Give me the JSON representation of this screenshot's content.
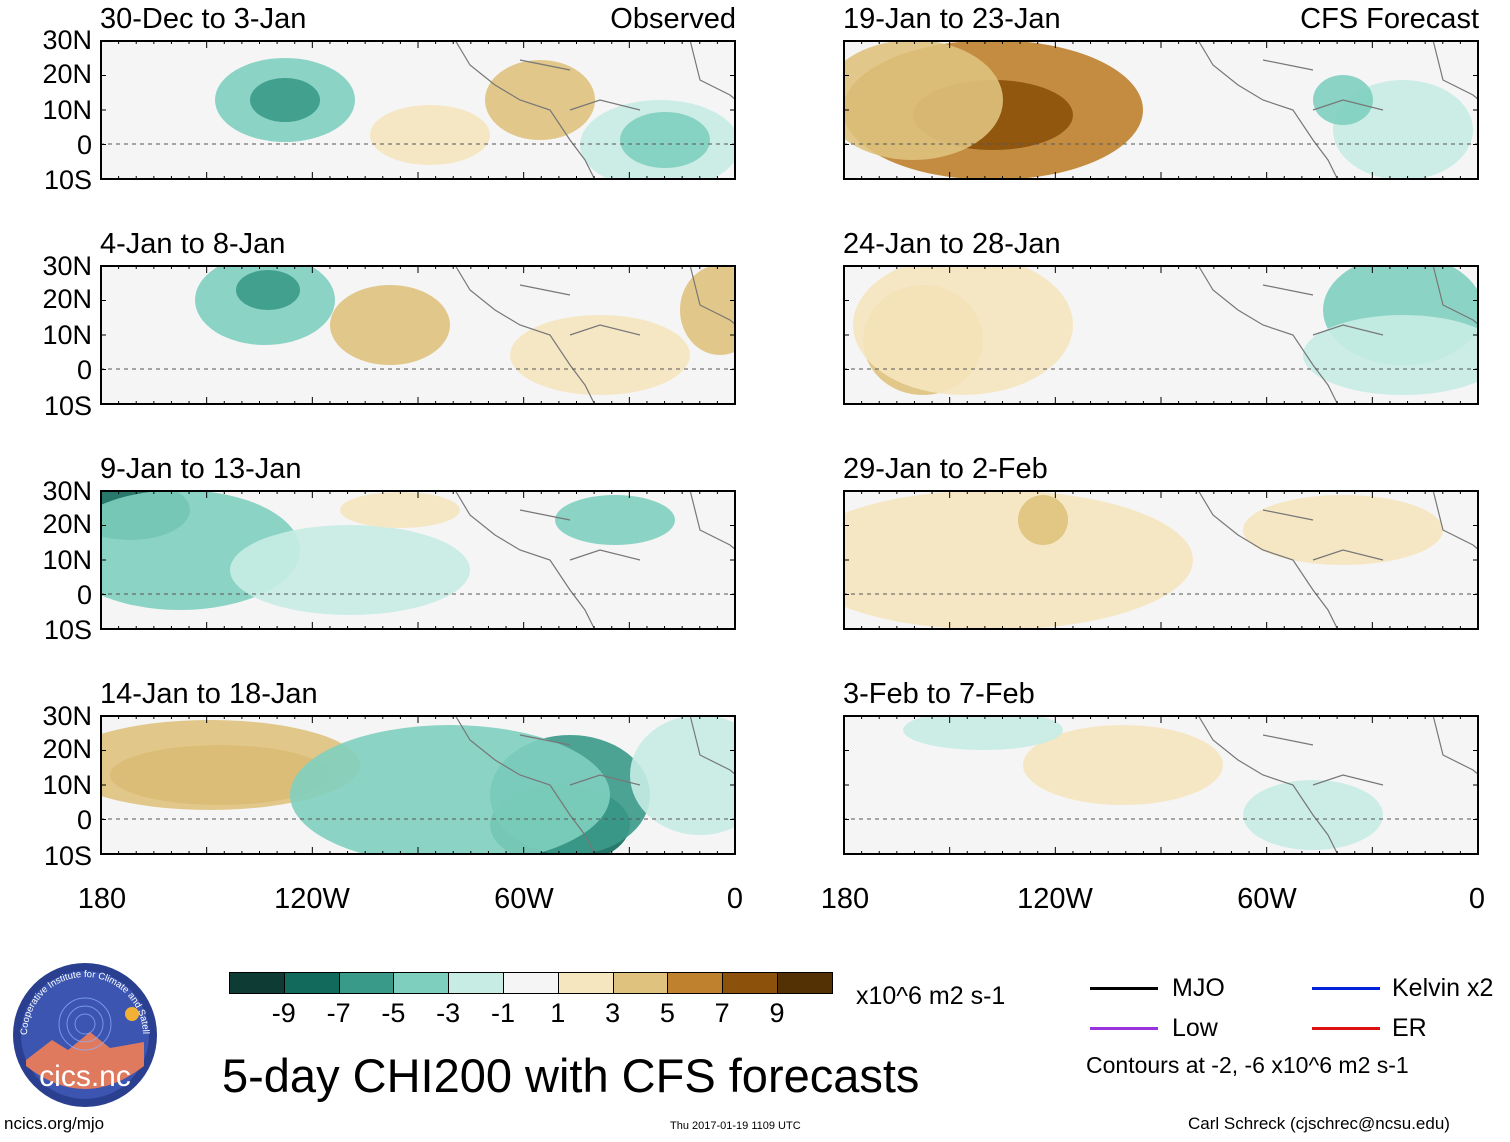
{
  "panels": [
    {
      "title": "30-Dec to 3-Jan",
      "tag": "Observed"
    },
    {
      "title": "19-Jan to 23-Jan",
      "tag": "CFS Forecast"
    },
    {
      "title": "4-Jan to 8-Jan",
      "tag": ""
    },
    {
      "title": "24-Jan to 28-Jan",
      "tag": ""
    },
    {
      "title": "9-Jan to 13-Jan",
      "tag": ""
    },
    {
      "title": "29-Jan to 2-Feb",
      "tag": ""
    },
    {
      "title": "14-Jan to 18-Jan",
      "tag": ""
    },
    {
      "title": "3-Feb to 7-Feb",
      "tag": ""
    }
  ],
  "lat_labels": [
    "30N",
    "20N",
    "10N",
    "0",
    "10S"
  ],
  "lon_labels": [
    "180",
    "120W",
    "60W",
    "0"
  ],
  "colorbar": {
    "colors": [
      "#0e3b33",
      "#126a5c",
      "#3a9a8a",
      "#7fcfbf",
      "#c7ece4",
      "#f5f5f5",
      "#f6e6bf",
      "#dfc27d",
      "#bf812d",
      "#8c510a",
      "#543005"
    ],
    "ticks": [
      "-9",
      "-7",
      "-5",
      "-3",
      "-1",
      "1",
      "3",
      "5",
      "7",
      "9"
    ],
    "units": "x10^6 m2 s-1"
  },
  "title": "5-day CHI200 with CFS forecasts",
  "legend": [
    {
      "label": "MJO",
      "color": "#000000"
    },
    {
      "label": "Kelvin x2",
      "color": "#0022dd"
    },
    {
      "label": "Low",
      "color": "#9933dd"
    },
    {
      "label": "ER",
      "color": "#dd1111"
    }
  ],
  "contours_note": "Contours at -2, -6 x10^6 m2 s-1",
  "logo_text": "cics.nc",
  "logo_ring_text": "Cooperative Institute for Climate and Satellites",
  "footer": {
    "url": "ncics.org/mjo",
    "timestamp": "Thu 2017-01-19 1109 UTC",
    "credit": "Carl Schreck (cjschrec@ncsu.edu)"
  }
}
